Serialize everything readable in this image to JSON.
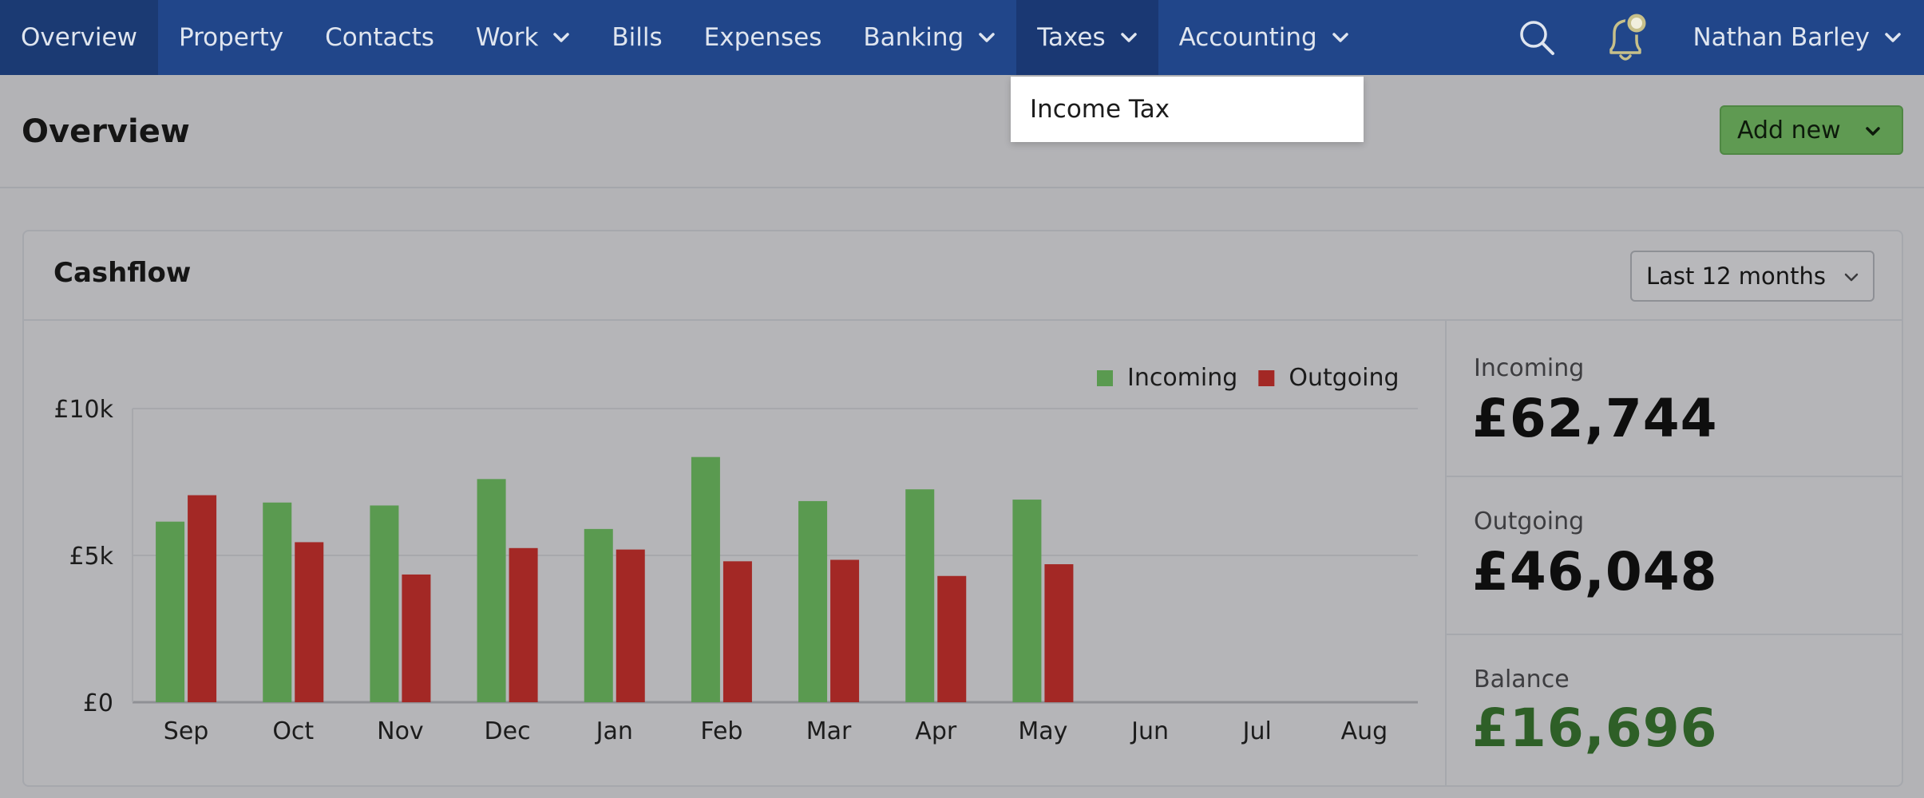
{
  "nav": {
    "items": [
      {
        "label": "Overview",
        "active": true,
        "dropdown": false
      },
      {
        "label": "Property",
        "active": false,
        "dropdown": false
      },
      {
        "label": "Contacts",
        "active": false,
        "dropdown": false
      },
      {
        "label": "Work",
        "active": false,
        "dropdown": true
      },
      {
        "label": "Bills",
        "active": false,
        "dropdown": false
      },
      {
        "label": "Expenses",
        "active": false,
        "dropdown": false
      },
      {
        "label": "Banking",
        "active": false,
        "dropdown": true
      },
      {
        "label": "Taxes",
        "active": false,
        "dropdown": true,
        "open": true
      },
      {
        "label": "Accounting",
        "active": false,
        "dropdown": true
      }
    ],
    "user_name": "Nathan Barley",
    "icons": [
      "search-icon",
      "notification-bell-icon",
      "chevron-down-icon"
    ]
  },
  "taxes_menu": {
    "items": [
      "Income Tax"
    ]
  },
  "header": {
    "title": "Overview",
    "add_new_label": "Add new"
  },
  "cashflow": {
    "title": "Cashflow",
    "period_label": "Last 12 months"
  },
  "stats": {
    "incoming_label": "Incoming",
    "incoming_value": "£62,744",
    "outgoing_label": "Outgoing",
    "outgoing_value": "£46,048",
    "balance_label": "Balance",
    "balance_value": "£16,696"
  },
  "colors": {
    "nav_bg": "#21468a",
    "incoming": "#5a9a50",
    "outgoing": "#a32825",
    "balance": "#2e5f27",
    "add_new_bg": "#5f9a52"
  },
  "chart_data": {
    "type": "bar",
    "categories": [
      "Sep",
      "Oct",
      "Nov",
      "Dec",
      "Jan",
      "Feb",
      "Mar",
      "Apr",
      "May",
      "Jun",
      "Jul",
      "Aug"
    ],
    "series": [
      {
        "name": "Incoming",
        "color": "#5a9a50",
        "values": [
          6150,
          6800,
          6700,
          7600,
          5900,
          8350,
          6850,
          7250,
          6900,
          null,
          null,
          null
        ]
      },
      {
        "name": "Outgoing",
        "color": "#a32825",
        "values": [
          7050,
          5450,
          4350,
          5250,
          5200,
          4800,
          4850,
          4300,
          4700,
          null,
          null,
          null
        ]
      }
    ],
    "yticks": [
      "£10k",
      "£5k",
      "£0"
    ],
    "ylim": [
      0,
      10000
    ],
    "grid": true,
    "legend": "top-right"
  }
}
